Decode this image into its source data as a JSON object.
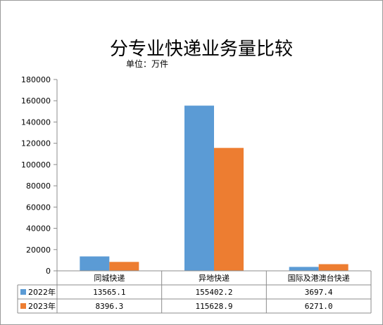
{
  "chart_data": {
    "type": "bar",
    "title": "分专业快递业务量比较",
    "unit_label": "单位：万件",
    "categories": [
      "同城快递",
      "异地快递",
      "国际及港澳台快递"
    ],
    "series": [
      {
        "name": "2022年",
        "values": [
          13565.1,
          155402.2,
          3697.4
        ],
        "labels": [
          "13565.1",
          "155402.2",
          "3697.4"
        ],
        "color": "#5b9bd5"
      },
      {
        "name": "2023年",
        "values": [
          8396.3,
          115628.9,
          6271.0
        ],
        "labels": [
          "8396.3",
          "115628.9",
          "6271.0"
        ],
        "color": "#ed7d31"
      }
    ],
    "ylim": [
      0,
      180000
    ],
    "yticks": [
      "0",
      "20000",
      "40000",
      "60000",
      "80000",
      "100000",
      "120000",
      "140000",
      "160000",
      "180000"
    ],
    "grid": false,
    "legend": "data-table"
  }
}
